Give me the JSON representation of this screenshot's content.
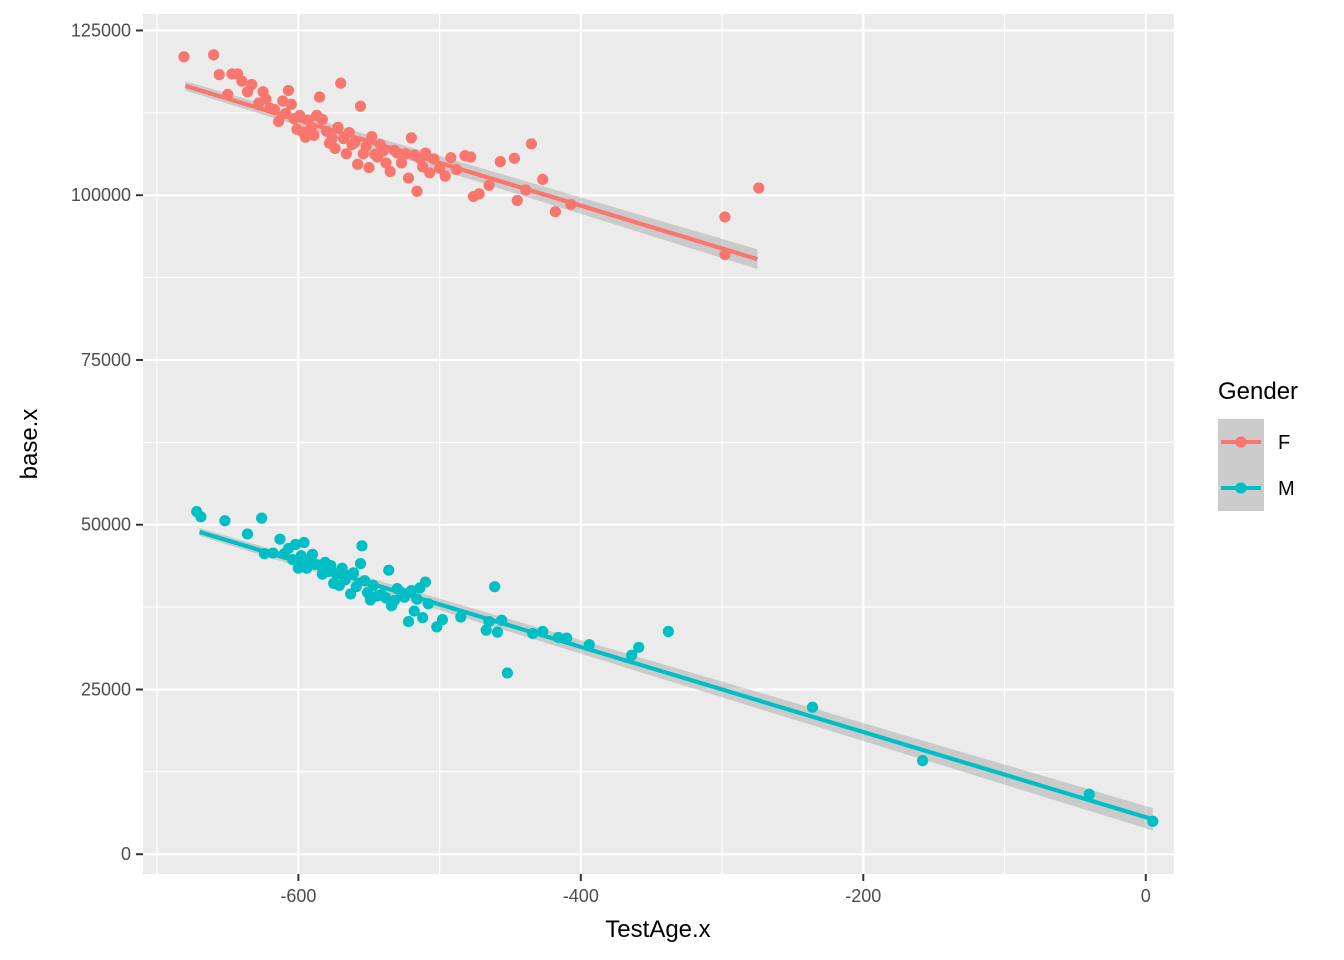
{
  "chart_data": {
    "type": "scatter",
    "xlabel": "TestAge.x",
    "ylabel": "base.x",
    "xlim": [
      -710,
      20
    ],
    "ylim": [
      -3000,
      127500
    ],
    "x_ticks": [
      -600,
      -400,
      -200,
      0
    ],
    "x_tick_labels": [
      "-600",
      "-400",
      "-200",
      "0"
    ],
    "x_minor_ticks": [
      -700,
      -500,
      -300,
      -100
    ],
    "y_ticks": [
      0,
      25000,
      50000,
      75000,
      100000,
      125000
    ],
    "y_tick_labels": [
      "0",
      "25000",
      "50000",
      "75000",
      "100000",
      "125000"
    ],
    "y_minor_ticks": [
      12500,
      37500,
      62500,
      87500,
      112500
    ],
    "grid": true,
    "legend": {
      "title": "Gender",
      "position": "right"
    },
    "series": [
      {
        "name": "F",
        "color": "#F8766D",
        "fit": {
          "x": [
            -680,
            -275
          ],
          "y": [
            116600,
            90300
          ],
          "se_low": [
            115900,
            88800
          ],
          "se_high": [
            117300,
            91800
          ]
        },
        "points": [
          [
            -681,
            121000
          ],
          [
            -660,
            121300
          ],
          [
            -656,
            118300
          ],
          [
            -650,
            115300
          ],
          [
            -647,
            118400
          ],
          [
            -643,
            118400
          ],
          [
            -640,
            117300
          ],
          [
            -636,
            115700
          ],
          [
            -633,
            116800
          ],
          [
            -628,
            114000
          ],
          [
            -625,
            115700
          ],
          [
            -623,
            114600
          ],
          [
            -620,
            113200
          ],
          [
            -617,
            113000
          ],
          [
            -614,
            111200
          ],
          [
            -611,
            114300
          ],
          [
            -609,
            112400
          ],
          [
            -607,
            115900
          ],
          [
            -605,
            113800
          ],
          [
            -603,
            111600
          ],
          [
            -601,
            110000
          ],
          [
            -599,
            112100
          ],
          [
            -597,
            109600
          ],
          [
            -595,
            108800
          ],
          [
            -593,
            111400
          ],
          [
            -591,
            110100
          ],
          [
            -589,
            109100
          ],
          [
            -587,
            112100
          ],
          [
            -585,
            114900
          ],
          [
            -583,
            111500
          ],
          [
            -580,
            109700
          ],
          [
            -578,
            107900
          ],
          [
            -576,
            108600
          ],
          [
            -574,
            107100
          ],
          [
            -572,
            110300
          ],
          [
            -570,
            117000
          ],
          [
            -568,
            108600
          ],
          [
            -566,
            106300
          ],
          [
            -564,
            109500
          ],
          [
            -562,
            107700
          ],
          [
            -560,
            108000
          ],
          [
            -558,
            104700
          ],
          [
            -556,
            113500
          ],
          [
            -554,
            106300
          ],
          [
            -552,
            107400
          ],
          [
            -550,
            104200
          ],
          [
            -548,
            108900
          ],
          [
            -546,
            106200
          ],
          [
            -544,
            105800
          ],
          [
            -542,
            107700
          ],
          [
            -540,
            106700
          ],
          [
            -538,
            104900
          ],
          [
            -535,
            103600
          ],
          [
            -532,
            106800
          ],
          [
            -530,
            106400
          ],
          [
            -527,
            104900
          ],
          [
            -524,
            106300
          ],
          [
            -522,
            102600
          ],
          [
            -520,
            108700
          ],
          [
            -518,
            106100
          ],
          [
            -516,
            100600
          ],
          [
            -514,
            105600
          ],
          [
            -512,
            104300
          ],
          [
            -510,
            106400
          ],
          [
            -507,
            103400
          ],
          [
            -504,
            105500
          ],
          [
            -500,
            104100
          ],
          [
            -496,
            102900
          ],
          [
            -492,
            105700
          ],
          [
            -488,
            103900
          ],
          [
            -482,
            106000
          ],
          [
            -478,
            105800
          ],
          [
            -476,
            99800
          ],
          [
            -472,
            100200
          ],
          [
            -465,
            101500
          ],
          [
            -457,
            105100
          ],
          [
            -447,
            105600
          ],
          [
            -445,
            99200
          ],
          [
            -439,
            100800
          ],
          [
            -435,
            107800
          ],
          [
            -427,
            102400
          ],
          [
            -418,
            97500
          ],
          [
            -407,
            98600
          ],
          [
            -298,
            96700
          ],
          [
            -298,
            91000
          ],
          [
            -274,
            101100
          ]
        ]
      },
      {
        "name": "M",
        "color": "#00BFC4",
        "fit": {
          "x": [
            -670,
            5
          ],
          "y": [
            48900,
            5300
          ],
          "se_low": [
            48300,
            3600
          ],
          "se_high": [
            49500,
            7000
          ]
        },
        "points": [
          [
            -672,
            52000
          ],
          [
            -669,
            51200
          ],
          [
            -652,
            50600
          ],
          [
            -636,
            48600
          ],
          [
            -626,
            51000
          ],
          [
            -624,
            45600
          ],
          [
            -618,
            45700
          ],
          [
            -613,
            47800
          ],
          [
            -610,
            45600
          ],
          [
            -607,
            46400
          ],
          [
            -604,
            44700
          ],
          [
            -602,
            47000
          ],
          [
            -600,
            43400
          ],
          [
            -598,
            45300
          ],
          [
            -596,
            47300
          ],
          [
            -594,
            43400
          ],
          [
            -592,
            44700
          ],
          [
            -590,
            45500
          ],
          [
            -588,
            44000
          ],
          [
            -585,
            43900
          ],
          [
            -583,
            42500
          ],
          [
            -581,
            44300
          ],
          [
            -579,
            42900
          ],
          [
            -577,
            43800
          ],
          [
            -575,
            41100
          ],
          [
            -573,
            42500
          ],
          [
            -571,
            40800
          ],
          [
            -569,
            43400
          ],
          [
            -567,
            41600
          ],
          [
            -565,
            42300
          ],
          [
            -563,
            39500
          ],
          [
            -561,
            42700
          ],
          [
            -559,
            40600
          ],
          [
            -556,
            44100
          ],
          [
            -555,
            46800
          ],
          [
            -553,
            41500
          ],
          [
            -551,
            39700
          ],
          [
            -549,
            38600
          ],
          [
            -547,
            40800
          ],
          [
            -544,
            39200
          ],
          [
            -541,
            39400
          ],
          [
            -538,
            38900
          ],
          [
            -536,
            43100
          ],
          [
            -534,
            37700
          ],
          [
            -532,
            38500
          ],
          [
            -530,
            40300
          ],
          [
            -527,
            39700
          ],
          [
            -525,
            39000
          ],
          [
            -522,
            35300
          ],
          [
            -520,
            40000
          ],
          [
            -518,
            36900
          ],
          [
            -516,
            38700
          ],
          [
            -514,
            40400
          ],
          [
            -512,
            35900
          ],
          [
            -510,
            41300
          ],
          [
            -508,
            38000
          ],
          [
            -502,
            34500
          ],
          [
            -498,
            35600
          ],
          [
            -485,
            36000
          ],
          [
            -467,
            34000
          ],
          [
            -465,
            35300
          ],
          [
            -461,
            40600
          ],
          [
            -459,
            33700
          ],
          [
            -456,
            35500
          ],
          [
            -452,
            27500
          ],
          [
            -434,
            33500
          ],
          [
            -427,
            33800
          ],
          [
            -416,
            32900
          ],
          [
            -410,
            32800
          ],
          [
            -394,
            31800
          ],
          [
            -364,
            30200
          ],
          [
            -359,
            31400
          ],
          [
            -338,
            33800
          ],
          [
            -236,
            22300
          ],
          [
            -158,
            14200
          ],
          [
            -40,
            9100
          ],
          [
            5,
            5000
          ]
        ]
      }
    ]
  }
}
